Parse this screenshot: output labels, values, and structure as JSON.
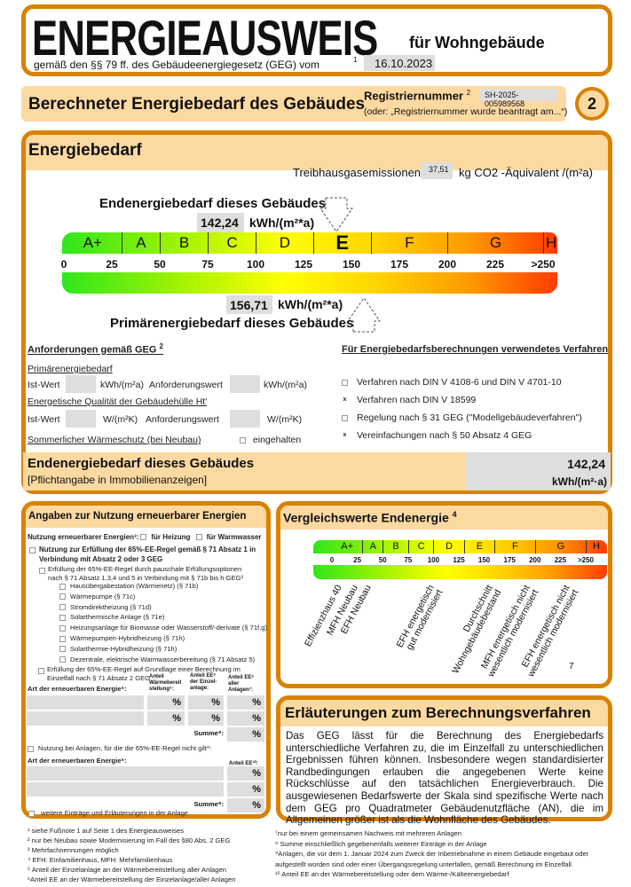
{
  "header": {
    "title": "ENERGIEAUSWEIS",
    "subtitle": "für Wohngebäude",
    "legal": "gemäß den §§ 79 ff. des Gebäudeenergiegesetz (GEG) vom",
    "legal_footnote": "1",
    "date": "16.10.2023"
  },
  "section": {
    "title": "Berechneter Energiebedarf des Gebäudes",
    "reg_label": "Registriernummer",
    "reg_sup": "2",
    "reg_number": "SH-2025-005989568",
    "reg_note": "(oder: „Registriernummer wurde beantragt am...“)",
    "page": "2"
  },
  "energiebedarf": {
    "title": "Energiebedarf",
    "ghg_label": "Treibhausgasemissionen",
    "ghg_value": "37,51",
    "ghg_unit": "kg CO2 -Äquivalent /(m²a)",
    "end_label": "Endenergiebedarf dieses Gebäudes",
    "end_value": "142,24",
    "end_unit": "kWh/(m²*a)",
    "end_numeric": 142.24,
    "prim_label": "Primärenergiebedarf dieses Gebäudes",
    "prim_value": "156,71",
    "prim_unit": "kWh/(m²*a)",
    "prim_numeric": 156.71,
    "current_class": "E",
    "classes": [
      {
        "label": "A+",
        "from": 0,
        "to": 30
      },
      {
        "label": "A",
        "from": 30,
        "to": 50
      },
      {
        "label": "B",
        "from": 50,
        "to": 75
      },
      {
        "label": "C",
        "from": 75,
        "to": 100
      },
      {
        "label": "D",
        "from": 100,
        "to": 130
      },
      {
        "label": "E",
        "from": 130,
        "to": 160
      },
      {
        "label": "F",
        "from": 160,
        "to": 200
      },
      {
        "label": "G",
        "from": 200,
        "to": 250
      },
      {
        "label": "H",
        "from": 250,
        "to": 258
      }
    ],
    "ticks": [
      "0",
      "25",
      "50",
      "75",
      "100",
      "125",
      "150",
      "175",
      "200",
      "225",
      ">250"
    ]
  },
  "requirements": {
    "title": "Anforderungen gemäß GEG",
    "title_sup": "2",
    "primary": "Primärenergiebedarf",
    "ist": "Ist-Wert",
    "unit_kwh": "kWh/(m²a)",
    "anf": "Anforderungswert",
    "quality": "Energetische Qualität der Gebäudehülle Ht'",
    "unit_w": "W/(m²K)",
    "summer": "Sommerlicher Wärmeschutz (bei Neubau)",
    "kept": "eingehalten"
  },
  "procedure": {
    "title": "Für Energiebedarfsberechnungen verwendetes Verfahren",
    "items": [
      {
        "label": "Verfahren nach DIN V 4108-6 und DIN V 4701-10",
        "checked": false,
        "mark": ""
      },
      {
        "label": "Verfahren nach DIN V 18599",
        "checked": true,
        "mark": "x"
      },
      {
        "label": "Regelung nach § 31 GEG (\"Modellgebäudeverfahren\")",
        "checked": false,
        "mark": ""
      },
      {
        "label": "Vereinfachungen nach § 50 Absatz 4 GEG",
        "checked": true,
        "mark": "x"
      }
    ]
  },
  "summary": {
    "title": "Endenergiebedarf dieses Gebäudes",
    "note": "[Pflichtangabe in Immobilienanzeigen]",
    "value": "142,24",
    "unit": "kWh/(m²·a)"
  },
  "renewable": {
    "title": "Angaben zur Nutzung erneuerbarer Energien",
    "usage": "Nutzung erneuerbarer Energien³:",
    "heat": "für Heizung",
    "water": "für Warmwasser",
    "rule1": "Nutzung zur Erfüllung der 65%-EE-Regel gemäß § 71 Absatz 1 in",
    "rule1b": "Verbindung mit Absatz 2 oder 3 GEG",
    "flat": "Erfüllung der 65%-EE-Regel durch pauschale Erfüllungsoptionen",
    "flatb": "nach § 71 Absatz 1,3,4 und 5 in Verbindung mit § 71b bis h GEG³",
    "options": [
      "Hausübergabestation (Wärmenetz) (§ 71b)",
      "Wärmepumpe (§ 71c)",
      "Stromdirektheizung (§ 71d)",
      "Solarthermische Anlage (§ 71e)",
      "Heizungsanlage für Biomasse oder Wasserstoff/-derivate (§ 71f,g)",
      "Wärmepumpen-Hybridheizung (§ 71h)",
      "Solarthermie-Hybridheizung (§ 71h)",
      "Dezentrale, elektrische Warmwasserbereitung (§ 71 Absatz 5)"
    ],
    "calc": "Erfüllung der 65%-EE-Regel auf Grundlage einer Berechnung im",
    "calcb": "Einzelfall nach § 71 Absatz 2 GEG",
    "col_type": "Art der erneuerbaren Energie⁵:",
    "col1": [
      "Anteil",
      "Wärmebereit",
      "stellung⁵:"
    ],
    "col2": [
      "Anteil EE⁶",
      "der Einzel-",
      "anlage:"
    ],
    "col3": [
      "Anteil EE⁶",
      "aller",
      "Anlagen⁷:"
    ],
    "pct": "%",
    "sum": "Summe⁸:",
    "other": "Nutzung bei Anlagen, für die die 65%-EE-Regel nicht gilt⁹:",
    "col_ee10": "Anteil EE¹⁰:",
    "more": "weitere Einträge und Erläuterungen in der Anlage"
  },
  "comparison": {
    "title": "Vergleichswerte Endenergie",
    "title_sup": "4",
    "ticks": [
      "0",
      "25",
      "50",
      "75",
      "100",
      "125",
      "150",
      "175",
      "200",
      "225",
      ">250"
    ],
    "classes": [
      {
        "label": "A+",
        "from": 0,
        "to": 30
      },
      {
        "label": "A",
        "from": 30,
        "to": 50
      },
      {
        "label": "B",
        "from": 50,
        "to": 75
      },
      {
        "label": "C",
        "from": 75,
        "to": 100
      },
      {
        "label": "D",
        "from": 100,
        "to": 130
      },
      {
        "label": "E",
        "from": 130,
        "to": 160
      },
      {
        "label": "F",
        "from": 160,
        "to": 200
      },
      {
        "label": "G",
        "from": 200,
        "to": 250
      },
      {
        "label": "H",
        "from": 250,
        "to": 270
      }
    ],
    "references": [
      {
        "lines": [
          "Effizienzhaus 40"
        ],
        "value": 0
      },
      {
        "lines": [
          "MFH Neubau"
        ],
        "value": 0
      },
      {
        "lines": [
          "EFH Neubau"
        ],
        "value": 0
      },
      {
        "lines": [
          "EFH energetisch",
          "gut modernisiert"
        ],
        "value": 0
      },
      {
        "lines": [
          "Durchschnitt",
          "Wohngebäudebestand"
        ],
        "value": 0
      },
      {
        "lines": [
          "MFH energetisch nicht",
          "wesentlich modernisiert"
        ],
        "value": 0
      },
      {
        "lines": [
          "EFH energetisch nicht",
          "wesentlich modernisiert"
        ],
        "value": 0
      }
    ],
    "page_marker": "7"
  },
  "explanation": {
    "title": "Erläuterungen zum Berechnungsverfahren",
    "text": "Das GEG lässt für die Berechnung des Energiebedarfs unterschiedliche Verfahren zu, die im Einzelfall zu unterschiedlichen Ergebnissen führen können. Insbesondere wegen standardisierter Randbedingungen erlauben die angegebenen Werte keine Rückschlüsse auf den tatsächlichen Energieverbrauch. Die ausgewiesenen Bedarfswerte der Skala sind spezifische Werte nach dem GEG pro Quadratmeter Gebäudenutzfläche (AN), die im Allgemeinen größer ist als die Wohnfläche des Gebäudes."
  },
  "footnotes_left": [
    "¹ siehe Fußnote 1 auf Seite 1 des Energieausweises",
    "² nur bei Neubau sowie Modernisierung im Fall des §80 Abs. 2 GEG",
    "³ Mehrfachnennungen möglich",
    "⁴ EFH: Einfamilienhaus, MFH: Mehrfamilienhaus",
    "⁵ Anteil der Einzelanlage an der Wärmebereitstellung aller Anlagen",
    "⁶Anteil EE an der Wärmebereitstellung der Einzelanlage/aller Anlagen"
  ],
  "footnotes_right": [
    "⁷nur bei einem gemeinsamen Nachweis mit mehreren Anlagen",
    "⁸ Summe einschließlich gegebenenfalls weiterer Einträge in der Anlage",
    "⁹Anlagen, die vor dem 1. Januar 2024 zum Zweck der Inbetriebnahme in einem Gebäude eingebaut oder",
    "aufgestellt worden sind oder einer Übergangsregelung unterfallen, gemäß Berechnung im Einzelfall",
    "¹⁰ Anteil EE an der Wärmebereitstellung oder dem Wärme-/Kälteenergiebedarf"
  ],
  "colors": {
    "border": "#d98200",
    "header_bg": "#fdd9a2",
    "field_bg": "#dedede"
  }
}
